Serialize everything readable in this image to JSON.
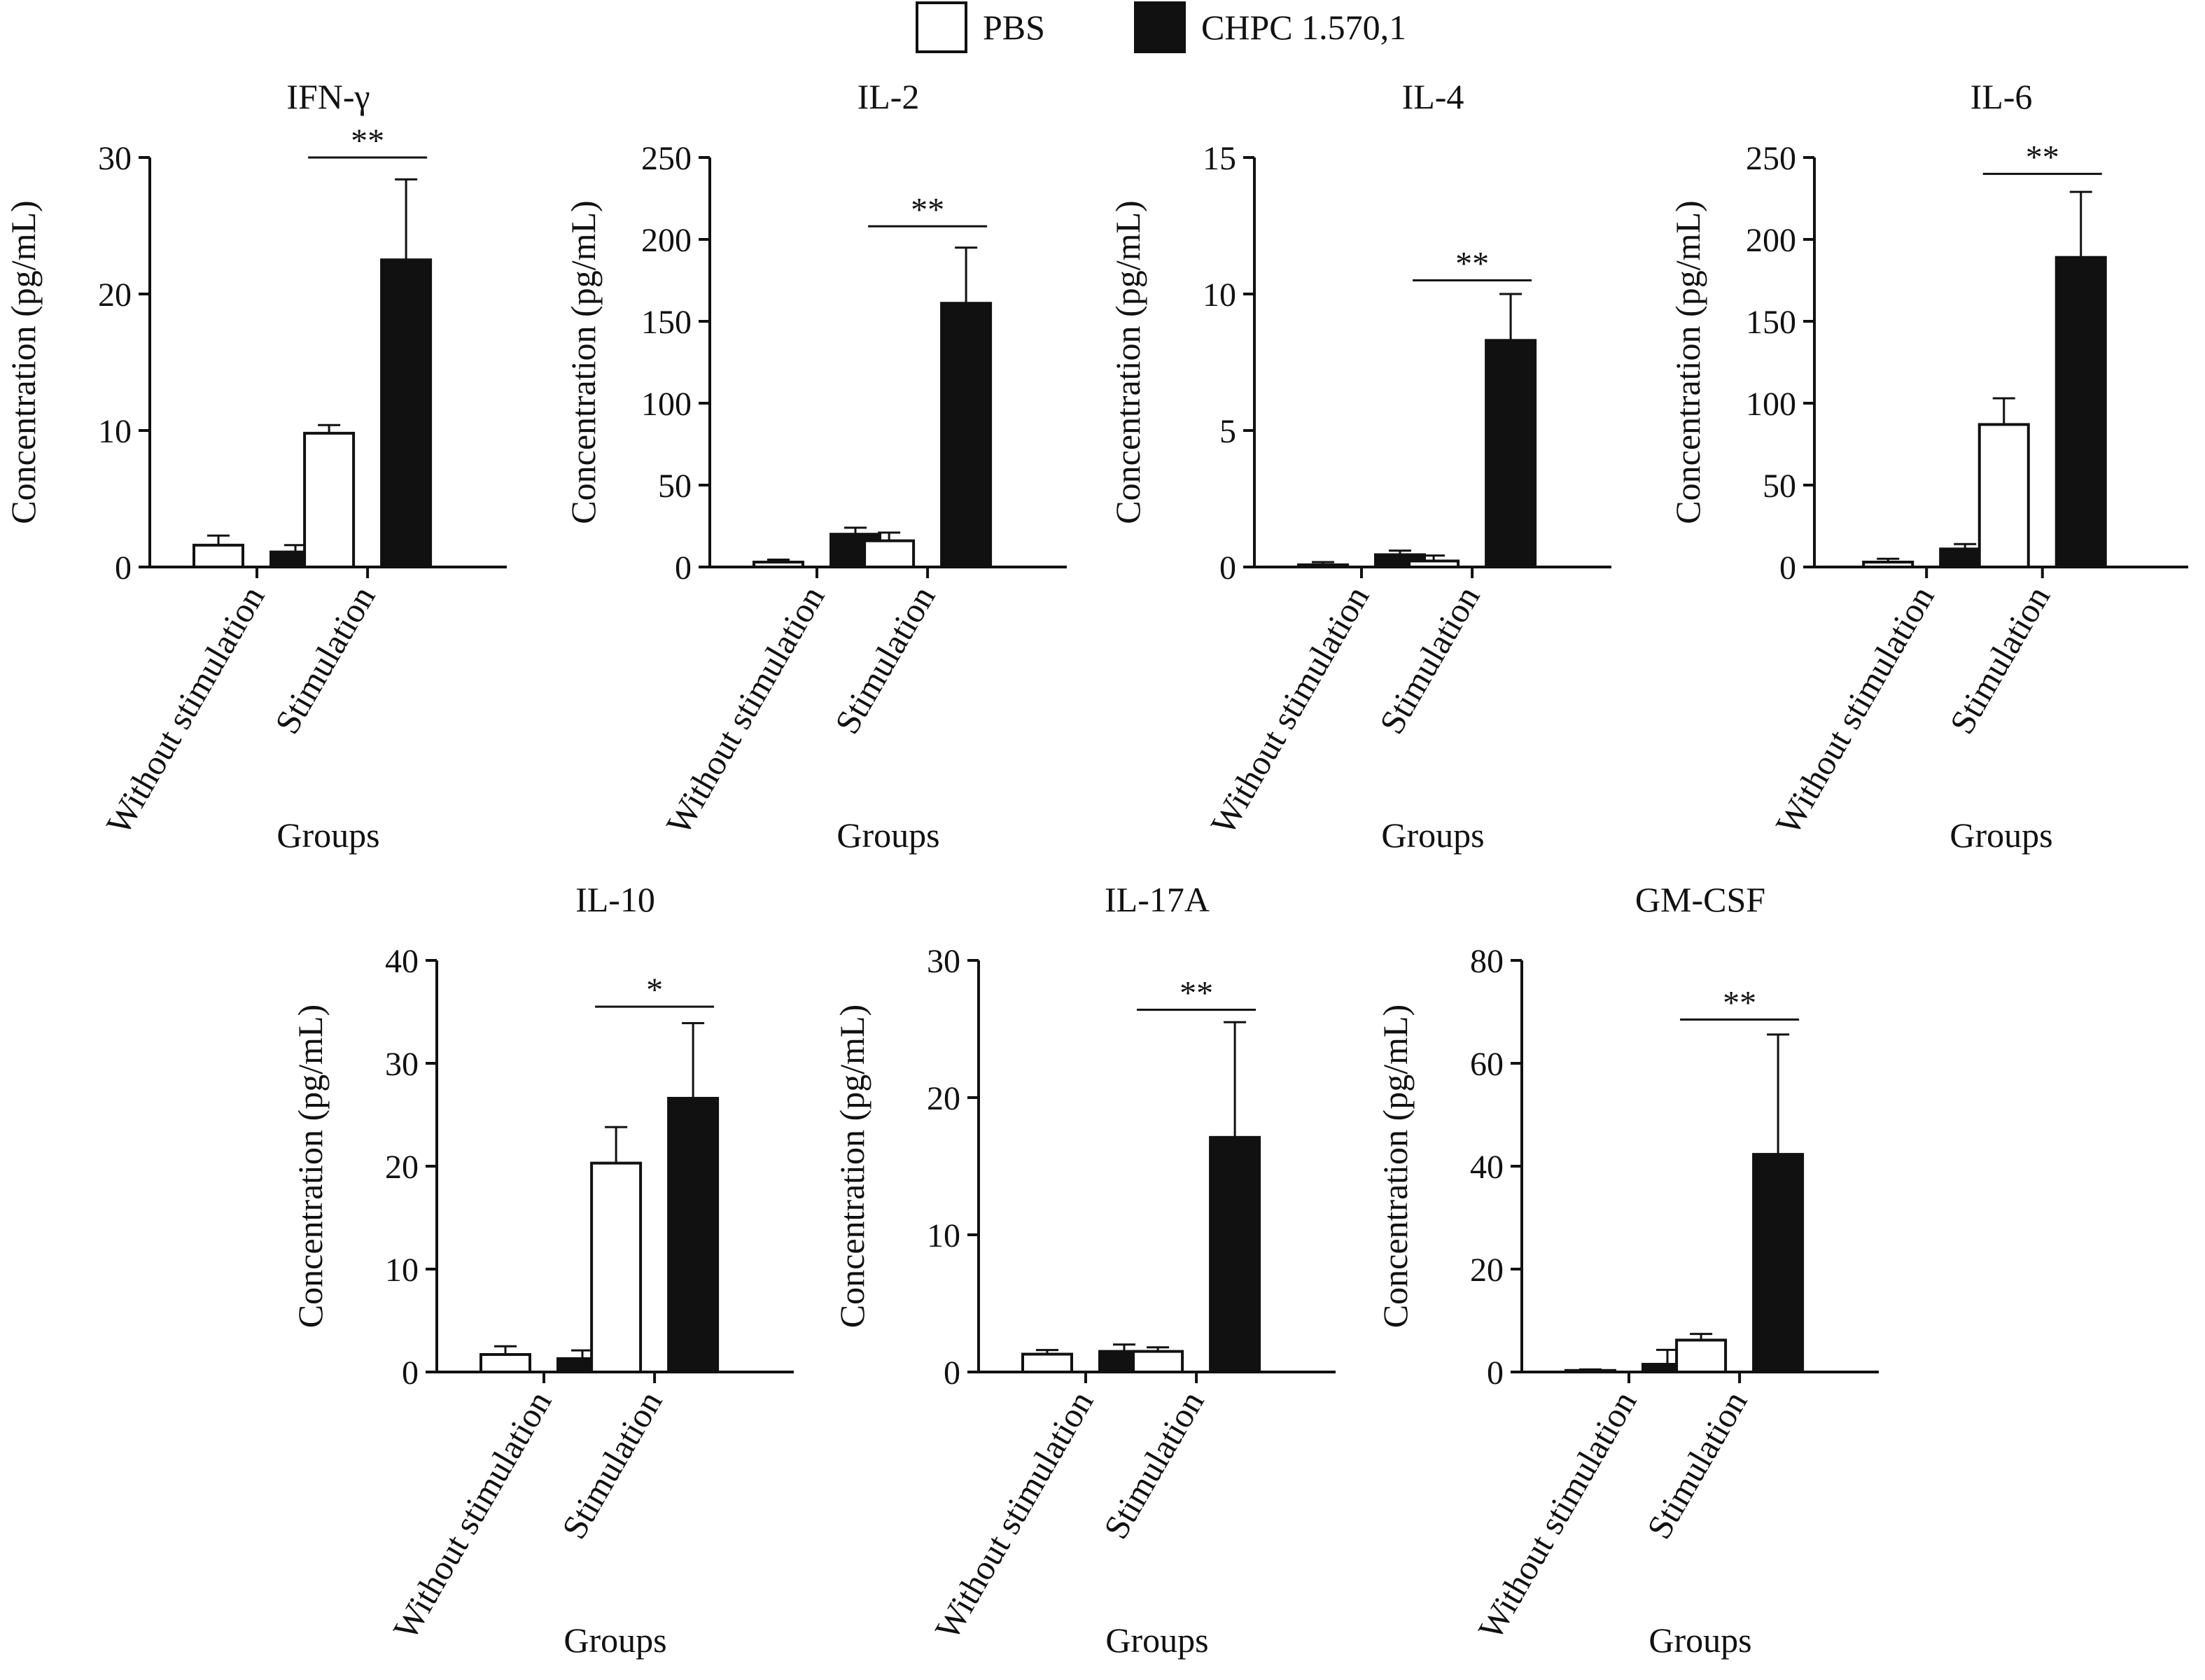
{
  "legend": {
    "items": [
      {
        "label": "PBS",
        "color": "#ffffff"
      },
      {
        "label": "CHPC 1.570,1",
        "color": "#111111"
      }
    ]
  },
  "chart_data": [
    {
      "type": "bar",
      "title": "IFN-γ",
      "xlabel": "Groups",
      "ylabel": "Concentration (pg/mL)",
      "categories": [
        "Without stimulation",
        "Stimulation"
      ],
      "ylim": [
        0,
        30
      ],
      "yticks": [
        0,
        10,
        20,
        30
      ],
      "series": [
        {
          "name": "PBS",
          "values": [
            1.6,
            9.8
          ],
          "errors": [
            0.7,
            0.6
          ]
        },
        {
          "name": "CHPC 1.570,1",
          "values": [
            1.1,
            22.5
          ],
          "errors": [
            0.5,
            5.9
          ]
        }
      ],
      "significance": [
        {
          "category": "Stimulation",
          "label": "**",
          "y": 30
        }
      ]
    },
    {
      "type": "bar",
      "title": "IL-2",
      "xlabel": "Groups",
      "ylabel": "Concentration (pg/mL)",
      "categories": [
        "Without stimulation",
        "Stimulation"
      ],
      "ylim": [
        0,
        250
      ],
      "yticks": [
        0,
        50,
        100,
        150,
        200,
        250
      ],
      "series": [
        {
          "name": "PBS",
          "values": [
            3,
            16
          ],
          "errors": [
            1.5,
            5
          ]
        },
        {
          "name": "CHPC 1.570,1",
          "values": [
            20,
            161
          ],
          "errors": [
            4,
            34
          ]
        }
      ],
      "significance": [
        {
          "category": "Stimulation",
          "label": "**",
          "y": 208
        }
      ]
    },
    {
      "type": "bar",
      "title": "IL-4",
      "xlabel": "Groups",
      "ylabel": "Concentration (pg/mL)",
      "categories": [
        "Without stimulation",
        "Stimulation"
      ],
      "ylim": [
        0,
        15
      ],
      "yticks": [
        0,
        5,
        10,
        15
      ],
      "series": [
        {
          "name": "PBS",
          "values": [
            0.08,
            0.22
          ],
          "errors": [
            0.1,
            0.2
          ]
        },
        {
          "name": "CHPC 1.570,1",
          "values": [
            0.45,
            8.3
          ],
          "errors": [
            0.15,
            1.7
          ]
        }
      ],
      "significance": [
        {
          "category": "Stimulation",
          "label": "**",
          "y": 10.5
        }
      ]
    },
    {
      "type": "bar",
      "title": "IL-6",
      "xlabel": "Groups",
      "ylabel": "Concentration (pg/mL)",
      "categories": [
        "Without stimulation",
        "Stimulation"
      ],
      "ylim": [
        0,
        250
      ],
      "yticks": [
        0,
        50,
        100,
        150,
        200,
        250
      ],
      "series": [
        {
          "name": "PBS",
          "values": [
            3,
            87
          ],
          "errors": [
            2,
            16
          ]
        },
        {
          "name": "CHPC 1.570,1",
          "values": [
            11,
            189
          ],
          "errors": [
            3,
            40
          ]
        }
      ],
      "significance": [
        {
          "category": "Stimulation",
          "label": "**",
          "y": 240
        }
      ]
    },
    {
      "type": "bar",
      "title": "IL-10",
      "xlabel": "Groups",
      "ylabel": "Concentration (pg/mL)",
      "categories": [
        "Without stimulation",
        "Stimulation"
      ],
      "ylim": [
        0,
        40
      ],
      "yticks": [
        0,
        10,
        20,
        30,
        40
      ],
      "series": [
        {
          "name": "PBS",
          "values": [
            1.7,
            20.3
          ],
          "errors": [
            0.8,
            3.5
          ]
        },
        {
          "name": "CHPC 1.570,1",
          "values": [
            1.3,
            26.6
          ],
          "errors": [
            0.8,
            7.3
          ]
        }
      ],
      "significance": [
        {
          "category": "Stimulation",
          "label": "*",
          "y": 35.5
        }
      ]
    },
    {
      "type": "bar",
      "title": "IL-17A",
      "xlabel": "Groups",
      "ylabel": "Concentration (pg/mL)",
      "categories": [
        "Without stimulation",
        "Stimulation"
      ],
      "ylim": [
        0,
        30
      ],
      "yticks": [
        0,
        10,
        20,
        30
      ],
      "series": [
        {
          "name": "PBS",
          "values": [
            1.3,
            1.5
          ],
          "errors": [
            0.3,
            0.3
          ]
        },
        {
          "name": "CHPC 1.570,1",
          "values": [
            1.5,
            17.1
          ],
          "errors": [
            0.5,
            8.4
          ]
        }
      ],
      "significance": [
        {
          "category": "Stimulation",
          "label": "**",
          "y": 26.4
        }
      ]
    },
    {
      "type": "bar",
      "title": "GM-CSF",
      "xlabel": "Groups",
      "ylabel": "Concentration (pg/mL)",
      "categories": [
        "Without stimulation",
        "Stimulation"
      ],
      "ylim": [
        0,
        80
      ],
      "yticks": [
        0,
        20,
        40,
        60,
        80
      ],
      "series": [
        {
          "name": "PBS",
          "values": [
            0.3,
            6.2
          ],
          "errors": [
            0.2,
            1.2
          ]
        },
        {
          "name": "CHPC 1.570,1",
          "values": [
            1.5,
            42.3
          ],
          "errors": [
            2.8,
            23.3
          ]
        }
      ],
      "significance": [
        {
          "category": "Stimulation",
          "label": "**",
          "y": 68.5
        }
      ]
    }
  ]
}
